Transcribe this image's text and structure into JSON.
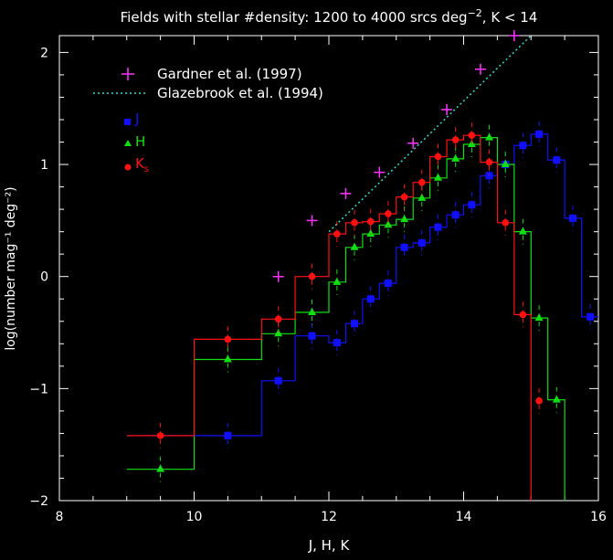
{
  "chart_data": {
    "type": "line",
    "title_main": "Fields with stellar #density: 1200 to 4000 srcs deg",
    "title_exp": "−2",
    "title_tail": ", K < 14",
    "xlabel": "J, H, K",
    "ylabel": "log(number mag⁻¹ deg⁻²)",
    "xlim": [
      8,
      16
    ],
    "ylim": [
      -2,
      2.2
    ],
    "x_ticks": [
      8,
      10,
      12,
      14,
      16
    ],
    "y_ticks": [
      -2,
      -1,
      0,
      1,
      2
    ],
    "x_tick_labels": [
      "8",
      "10",
      "12",
      "14",
      "16"
    ],
    "y_tick_labels": [
      "−2",
      "−1",
      "0",
      "1",
      "2"
    ],
    "legend": {
      "gardner": "Gardner et al. (1997)",
      "glazebrook": "Glazebrook et al. (1994)",
      "j": "J",
      "h": "H",
      "ks_main": "K",
      "ks_sub": "s"
    },
    "colors": {
      "J": "#1010ff",
      "H": "#10e010",
      "Ks": "#ff1010",
      "gardner": "#ff33ff",
      "glazebrook": "#33ddcc",
      "axes": "#ffffff"
    },
    "series": [
      {
        "name": "J",
        "steps": [
          [
            9.0,
            -1.42
          ],
          [
            10.0,
            -1.42
          ],
          [
            10.0,
            -1.42
          ],
          [
            11.0,
            -1.42
          ],
          [
            11.0,
            -0.93
          ],
          [
            11.5,
            -0.93
          ],
          [
            11.5,
            -0.53
          ],
          [
            12.0,
            -0.53
          ],
          [
            12.0,
            -0.59
          ],
          [
            12.25,
            -0.59
          ],
          [
            12.25,
            -0.42
          ],
          [
            12.5,
            -0.42
          ],
          [
            12.5,
            -0.2
          ],
          [
            12.75,
            -0.2
          ],
          [
            12.75,
            -0.06
          ],
          [
            13.0,
            -0.06
          ],
          [
            13.0,
            0.26
          ],
          [
            13.25,
            0.26
          ],
          [
            13.25,
            0.3
          ],
          [
            13.5,
            0.3
          ],
          [
            13.5,
            0.44
          ],
          [
            13.75,
            0.44
          ],
          [
            13.75,
            0.55
          ],
          [
            14.0,
            0.55
          ],
          [
            14.0,
            0.64
          ],
          [
            14.25,
            0.64
          ],
          [
            14.25,
            0.9
          ],
          [
            14.5,
            0.9
          ],
          [
            14.5,
            1.0
          ],
          [
            14.75,
            1.0
          ],
          [
            14.75,
            1.17
          ],
          [
            15.0,
            1.17
          ],
          [
            15.0,
            1.27
          ],
          [
            15.25,
            1.27
          ],
          [
            15.25,
            1.04
          ],
          [
            15.5,
            1.04
          ],
          [
            15.5,
            0.52
          ],
          [
            15.75,
            0.52
          ],
          [
            15.75,
            -0.36
          ],
          [
            16.0,
            -0.36
          ]
        ],
        "points": [
          [
            10.5,
            -1.42
          ],
          [
            11.25,
            -0.93
          ],
          [
            11.75,
            -0.53
          ],
          [
            12.12,
            -0.59
          ],
          [
            12.38,
            -0.42
          ],
          [
            12.62,
            -0.2
          ],
          [
            12.88,
            -0.06
          ],
          [
            13.12,
            0.26
          ],
          [
            13.38,
            0.3
          ],
          [
            13.62,
            0.44
          ],
          [
            13.88,
            0.55
          ],
          [
            14.12,
            0.64
          ],
          [
            14.38,
            0.9
          ],
          [
            14.62,
            1.0
          ],
          [
            14.88,
            1.17
          ],
          [
            15.12,
            1.27
          ],
          [
            15.38,
            1.04
          ],
          [
            15.62,
            0.52
          ],
          [
            15.88,
            -0.36
          ]
        ]
      },
      {
        "name": "H",
        "steps": [
          [
            9.0,
            -1.72
          ],
          [
            10.0,
            -1.72
          ],
          [
            10.0,
            -0.74
          ],
          [
            11.0,
            -0.74
          ],
          [
            11.0,
            -0.51
          ],
          [
            11.5,
            -0.51
          ],
          [
            11.5,
            -0.32
          ],
          [
            12.0,
            -0.32
          ],
          [
            12.0,
            -0.05
          ],
          [
            12.25,
            -0.05
          ],
          [
            12.25,
            0.26
          ],
          [
            12.5,
            0.26
          ],
          [
            12.5,
            0.38
          ],
          [
            12.75,
            0.38
          ],
          [
            12.75,
            0.46
          ],
          [
            13.0,
            0.46
          ],
          [
            13.0,
            0.51
          ],
          [
            13.25,
            0.51
          ],
          [
            13.25,
            0.7
          ],
          [
            13.5,
            0.7
          ],
          [
            13.5,
            0.88
          ],
          [
            13.75,
            0.88
          ],
          [
            13.75,
            1.05
          ],
          [
            14.0,
            1.05
          ],
          [
            14.0,
            1.18
          ],
          [
            14.25,
            1.18
          ],
          [
            14.25,
            1.24
          ],
          [
            14.5,
            1.24
          ],
          [
            14.5,
            1.0
          ],
          [
            14.75,
            1.0
          ],
          [
            14.75,
            0.4
          ],
          [
            15.0,
            0.4
          ],
          [
            15.0,
            -0.37
          ],
          [
            15.25,
            -0.37
          ],
          [
            15.25,
            -1.1
          ],
          [
            15.5,
            -1.1
          ],
          [
            15.5,
            -2.0
          ]
        ],
        "points": [
          [
            9.5,
            -1.72
          ],
          [
            10.5,
            -0.74
          ],
          [
            11.25,
            -0.51
          ],
          [
            11.75,
            -0.32
          ],
          [
            12.12,
            -0.05
          ],
          [
            12.38,
            0.26
          ],
          [
            12.62,
            0.38
          ],
          [
            12.88,
            0.46
          ],
          [
            13.12,
            0.51
          ],
          [
            13.38,
            0.7
          ],
          [
            13.62,
            0.88
          ],
          [
            13.88,
            1.05
          ],
          [
            14.12,
            1.18
          ],
          [
            14.38,
            1.24
          ],
          [
            14.62,
            1.0
          ],
          [
            14.88,
            0.4
          ],
          [
            15.12,
            -0.37
          ],
          [
            15.38,
            -1.1
          ]
        ]
      },
      {
        "name": "Ks",
        "steps": [
          [
            9.0,
            -1.42
          ],
          [
            10.0,
            -1.42
          ],
          [
            10.0,
            -0.56
          ],
          [
            11.0,
            -0.56
          ],
          [
            11.0,
            -0.38
          ],
          [
            11.5,
            -0.38
          ],
          [
            11.5,
            0.0
          ],
          [
            12.0,
            0.0
          ],
          [
            12.0,
            0.38
          ],
          [
            12.25,
            0.38
          ],
          [
            12.25,
            0.48
          ],
          [
            12.5,
            0.48
          ],
          [
            12.5,
            0.49
          ],
          [
            12.75,
            0.49
          ],
          [
            12.75,
            0.56
          ],
          [
            13.0,
            0.56
          ],
          [
            13.0,
            0.71
          ],
          [
            13.25,
            0.71
          ],
          [
            13.25,
            0.84
          ],
          [
            13.5,
            0.84
          ],
          [
            13.5,
            1.07
          ],
          [
            13.75,
            1.07
          ],
          [
            13.75,
            1.22
          ],
          [
            14.0,
            1.22
          ],
          [
            14.0,
            1.26
          ],
          [
            14.25,
            1.26
          ],
          [
            14.25,
            1.02
          ],
          [
            14.5,
            1.02
          ],
          [
            14.5,
            0.48
          ],
          [
            14.75,
            0.48
          ],
          [
            14.75,
            -0.34
          ],
          [
            15.0,
            -0.34
          ],
          [
            15.0,
            -1.11
          ],
          [
            15.0,
            -2.0
          ]
        ],
        "points": [
          [
            9.5,
            -1.42
          ],
          [
            10.5,
            -0.56
          ],
          [
            11.25,
            -0.38
          ],
          [
            11.75,
            0.0
          ],
          [
            12.12,
            0.38
          ],
          [
            12.38,
            0.48
          ],
          [
            12.62,
            0.49
          ],
          [
            12.88,
            0.56
          ],
          [
            13.12,
            0.71
          ],
          [
            13.38,
            0.84
          ],
          [
            13.62,
            1.07
          ],
          [
            13.88,
            1.22
          ],
          [
            14.12,
            1.26
          ],
          [
            14.38,
            1.02
          ],
          [
            14.62,
            0.48
          ],
          [
            14.88,
            -0.34
          ],
          [
            15.12,
            -1.11
          ]
        ]
      },
      {
        "name": "Gardner et al. (1997)",
        "points": [
          [
            11.25,
            0.0
          ],
          [
            11.75,
            0.5
          ],
          [
            12.25,
            0.74
          ],
          [
            12.75,
            0.93
          ],
          [
            13.25,
            1.19
          ],
          [
            13.75,
            1.49
          ],
          [
            14.25,
            1.85
          ],
          [
            14.75,
            2.19
          ]
        ]
      },
      {
        "name": "Glazebrook et al. (1994)",
        "line": [
          [
            12.0,
            0.4
          ],
          [
            15.0,
            2.2
          ]
        ]
      }
    ]
  }
}
